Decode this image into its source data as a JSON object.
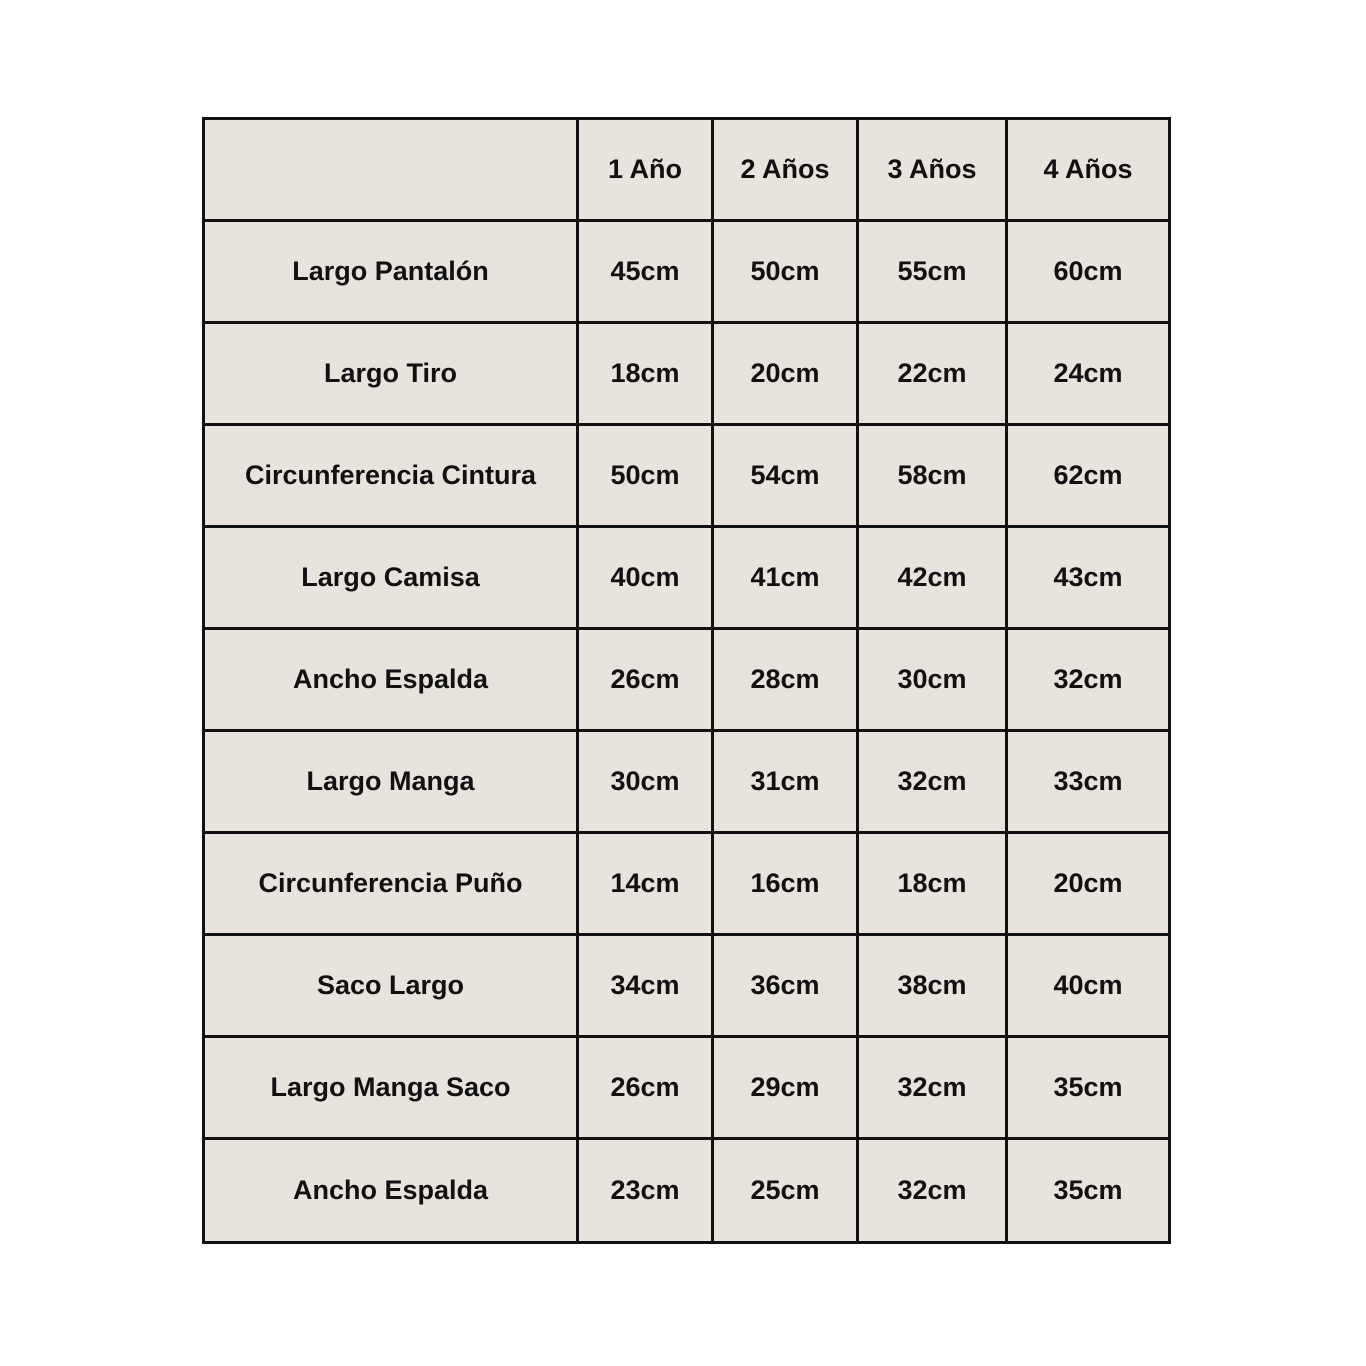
{
  "table": {
    "headers": [
      "",
      "1 Año",
      "2 Años",
      "3 Años",
      "4 Años"
    ],
    "rows": [
      {
        "label": "Largo Pantalón",
        "values": [
          "45cm",
          "50cm",
          "55cm",
          "60cm"
        ]
      },
      {
        "label": "Largo Tiro",
        "values": [
          "18cm",
          "20cm",
          "22cm",
          "24cm"
        ]
      },
      {
        "label": "Circunferencia Cintura",
        "values": [
          "50cm",
          "54cm",
          "58cm",
          "62cm"
        ]
      },
      {
        "label": "Largo Camisa",
        "values": [
          "40cm",
          "41cm",
          "42cm",
          "43cm"
        ]
      },
      {
        "label": "Ancho Espalda",
        "values": [
          "26cm",
          "28cm",
          "30cm",
          "32cm"
        ]
      },
      {
        "label": "Largo Manga",
        "values": [
          "30cm",
          "31cm",
          "32cm",
          "33cm"
        ]
      },
      {
        "label": "Circunferencia Puño",
        "values": [
          "14cm",
          "16cm",
          "18cm",
          "20cm"
        ]
      },
      {
        "label": "Saco Largo",
        "values": [
          "34cm",
          "36cm",
          "38cm",
          "40cm"
        ]
      },
      {
        "label": "Largo Manga Saco",
        "values": [
          "26cm",
          "29cm",
          "32cm",
          "35cm"
        ]
      },
      {
        "label": "Ancho Espalda",
        "values": [
          "23cm",
          "25cm",
          "32cm",
          "35cm"
        ]
      }
    ]
  },
  "colors": {
    "cell_background": "#e8e3dd",
    "border": "#111111",
    "text": "#111111"
  }
}
